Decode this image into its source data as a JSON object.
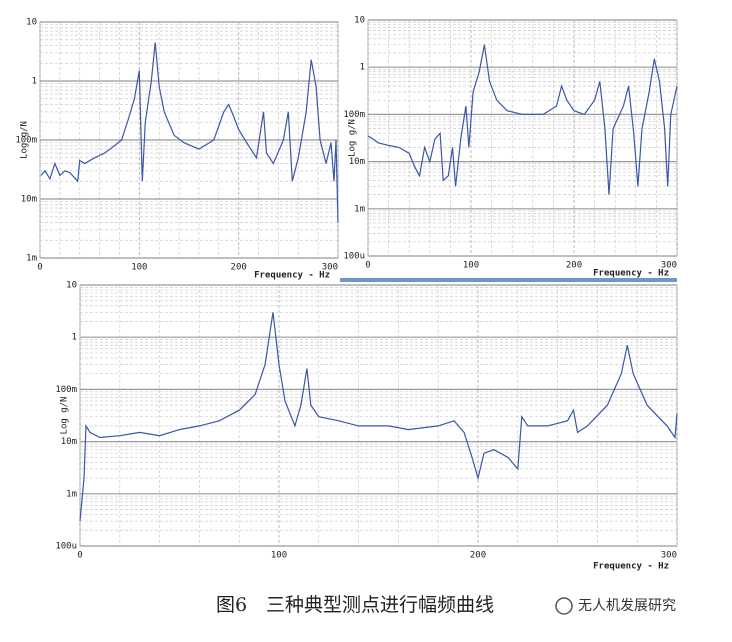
{
  "chart_data": [
    {
      "type": "line",
      "y_label": "Log g/N",
      "x_label": "Frequency - Hz",
      "x": [
        1,
        5,
        10,
        15,
        20,
        25,
        30,
        38,
        40,
        45,
        55,
        65,
        75,
        82,
        88,
        95,
        100,
        103,
        106,
        112,
        116,
        120,
        125,
        135,
        145,
        160,
        175,
        185,
        190,
        195,
        200,
        210,
        218,
        225,
        228,
        235,
        245,
        250,
        254,
        260,
        268,
        273,
        278,
        282,
        288,
        293,
        296,
        298,
        300
      ],
      "series": [
        {
          "color": "#3b57a6",
          "values": [
            0.025,
            0.03,
            0.022,
            0.04,
            0.025,
            0.03,
            0.028,
            0.02,
            0.045,
            0.04,
            0.05,
            0.06,
            0.08,
            0.1,
            0.2,
            0.5,
            1.5,
            0.02,
            0.2,
            1,
            4.5,
            0.8,
            0.3,
            0.12,
            0.09,
            0.07,
            0.1,
            0.3,
            0.4,
            0.25,
            0.15,
            0.08,
            0.05,
            0.3,
            0.06,
            0.04,
            0.1,
            0.3,
            0.02,
            0.05,
            0.3,
            2.3,
            0.8,
            0.1,
            0.04,
            0.09,
            0.02,
            0.1,
            0.004
          ]
        }
      ],
      "xlim": [
        0,
        300
      ],
      "xticks": [
        0,
        100,
        200,
        300
      ],
      "ylim": [
        0.001,
        10
      ],
      "yticks": [
        10,
        1,
        {
          "value": 0.1,
          "label": "100m"
        },
        {
          "value": 0.01,
          "label": "10m"
        },
        {
          "value": 0.001,
          "label": "1m"
        }
      ],
      "log_y": true,
      "grid": true,
      "minor_grid": true
    },
    {
      "type": "line",
      "y_label": "Log g/N",
      "x_label": "Frequency - Hz",
      "x": [
        0,
        5,
        10,
        20,
        30,
        40,
        45,
        50,
        55,
        60,
        65,
        70,
        73,
        78,
        82,
        85,
        90,
        95,
        98,
        102,
        108,
        113,
        118,
        125,
        135,
        150,
        170,
        183,
        188,
        193,
        200,
        210,
        220,
        225,
        230,
        234,
        238,
        248,
        253,
        258,
        262,
        266,
        273,
        278,
        283,
        288,
        291,
        294,
        300
      ],
      "series": [
        {
          "color": "#3b57a6",
          "values": [
            0.035,
            0.03,
            0.025,
            0.022,
            0.02,
            0.015,
            0.008,
            0.005,
            0.02,
            0.01,
            0.03,
            0.04,
            0.004,
            0.005,
            0.02,
            0.003,
            0.03,
            0.15,
            0.02,
            0.3,
            0.8,
            3,
            0.5,
            0.2,
            0.12,
            0.1,
            0.1,
            0.15,
            0.4,
            0.2,
            0.12,
            0.1,
            0.2,
            0.5,
            0.05,
            0.002,
            0.05,
            0.15,
            0.4,
            0.04,
            0.003,
            0.05,
            0.3,
            1.5,
            0.5,
            0.05,
            0.003,
            0.1,
            0.4
          ]
        }
      ],
      "xlim": [
        0,
        300
      ],
      "xticks": [
        0,
        100,
        200,
        300
      ],
      "ylim": [
        0.0001,
        10
      ],
      "yticks": [
        10,
        1,
        {
          "value": 0.1,
          "label": "100m"
        },
        {
          "value": 0.01,
          "label": "10m"
        },
        {
          "value": 0.001,
          "label": "1m"
        },
        {
          "value": 0.0001,
          "label": "100u"
        }
      ],
      "log_y": true,
      "grid": true,
      "minor_grid": true
    },
    {
      "type": "line",
      "y_label": "Log g/N",
      "x_label": "Frequency - Hz",
      "x": [
        0,
        2,
        3,
        5,
        10,
        20,
        30,
        40,
        50,
        60,
        70,
        80,
        88,
        93,
        97,
        100,
        103,
        108,
        111,
        114,
        116,
        120,
        130,
        140,
        155,
        165,
        180,
        188,
        193,
        197,
        200,
        203,
        208,
        215,
        220,
        222,
        225,
        235,
        245,
        248,
        250,
        255,
        265,
        272,
        275,
        278,
        285,
        295,
        299,
        300
      ],
      "series": [
        {
          "color": "#3b57a6",
          "values": [
            0.0003,
            0.002,
            0.02,
            0.015,
            0.012,
            0.013,
            0.015,
            0.013,
            0.017,
            0.02,
            0.025,
            0.04,
            0.08,
            0.3,
            3,
            0.3,
            0.06,
            0.02,
            0.05,
            0.25,
            0.05,
            0.03,
            0.025,
            0.02,
            0.02,
            0.017,
            0.02,
            0.025,
            0.015,
            0.005,
            0.002,
            0.006,
            0.007,
            0.005,
            0.003,
            0.03,
            0.02,
            0.02,
            0.025,
            0.04,
            0.015,
            0.02,
            0.05,
            0.2,
            0.7,
            0.2,
            0.05,
            0.02,
            0.012,
            0.035
          ]
        }
      ],
      "xlim": [
        0,
        300
      ],
      "xticks": [
        0,
        100,
        200,
        300
      ],
      "ylim": [
        0.0001,
        10
      ],
      "yticks": [
        10,
        1,
        {
          "value": 0.1,
          "label": "100m"
        },
        {
          "value": 0.01,
          "label": "10m"
        },
        {
          "value": 0.001,
          "label": "1m"
        },
        {
          "value": 0.0001,
          "label": "100u"
        }
      ],
      "log_y": true,
      "grid": true,
      "minor_grid": true
    }
  ],
  "caption": "图6　三种典型测点进行幅频曲线",
  "watermark": "无人机发展研究"
}
